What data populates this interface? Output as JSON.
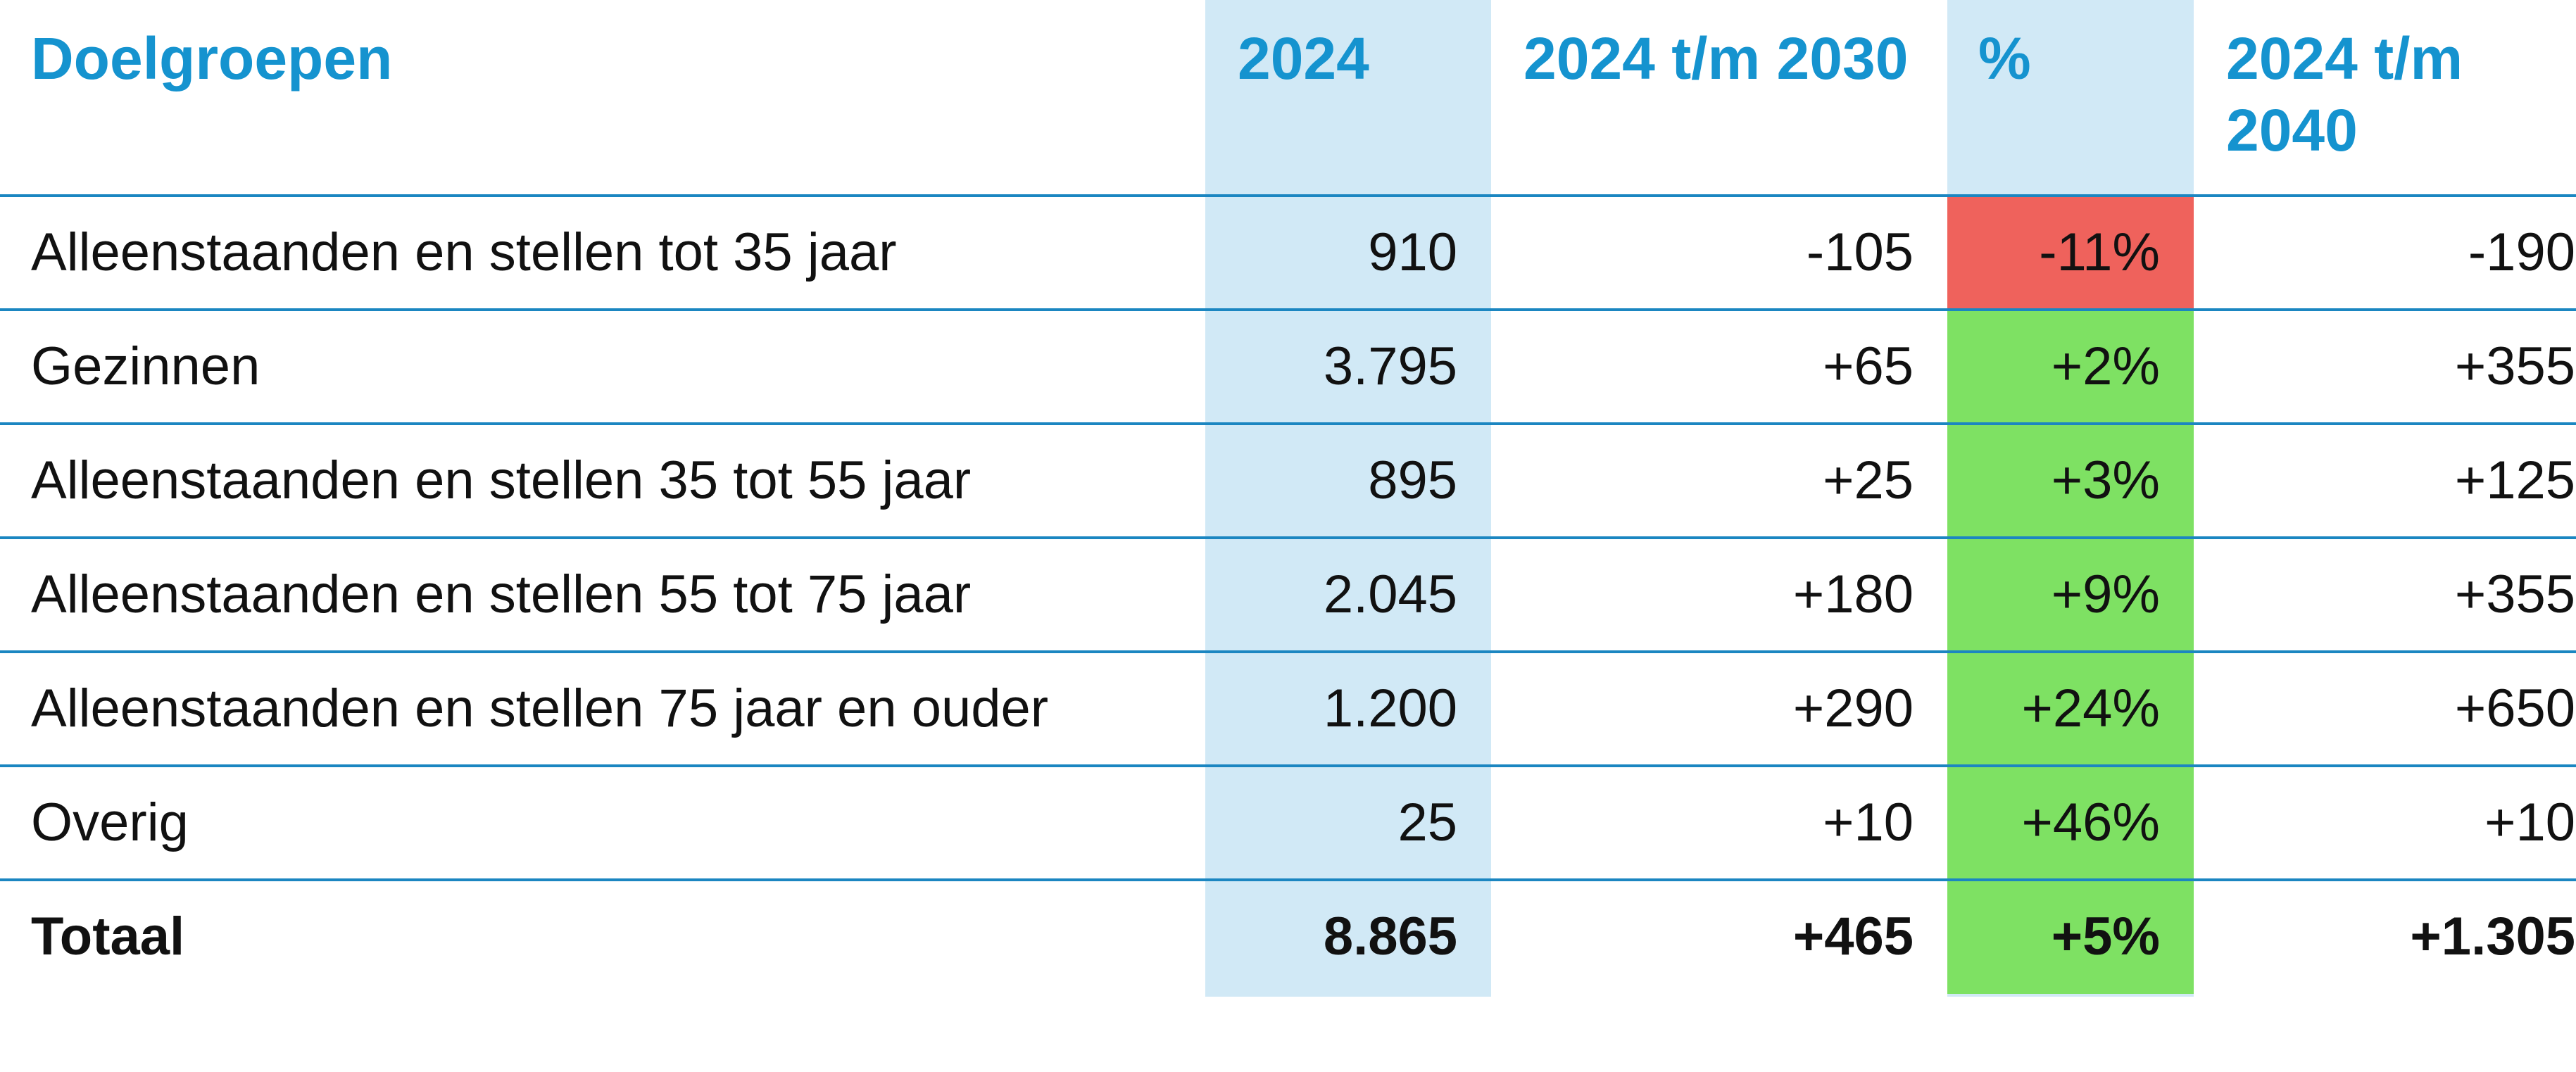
{
  "table": {
    "headers": [
      "Doelgroepen",
      "2024",
      "2024 t/m 2030",
      "%",
      "2024 t/m 2040"
    ],
    "rows": [
      {
        "label": "Alleenstaanden en stellen tot 35 jaar",
        "y2024": "910",
        "to2030": "-105",
        "pct": "-11%",
        "to2040": "-190",
        "pct_status": "negative"
      },
      {
        "label": "Gezinnen",
        "y2024": "3.795",
        "to2030": "+65",
        "pct": "+2%",
        "to2040": "+355",
        "pct_status": "positive"
      },
      {
        "label": "Alleenstaanden en stellen 35 tot 55 jaar",
        "y2024": "895",
        "to2030": "+25",
        "pct": "+3%",
        "to2040": "+125",
        "pct_status": "positive"
      },
      {
        "label": "Alleenstaanden en stellen 55 tot 75 jaar",
        "y2024": "2.045",
        "to2030": "+180",
        "pct": "+9%",
        "to2040": "+355",
        "pct_status": "positive"
      },
      {
        "label": "Alleenstaanden en stellen 75 jaar en ouder",
        "y2024": "1.200",
        "to2030": "+290",
        "pct": "+24%",
        "to2040": "+650",
        "pct_status": "positive"
      },
      {
        "label": "Overig",
        "y2024": "25",
        "to2030": "+10",
        "pct": "+46%",
        "to2040": "+10",
        "pct_status": "positive"
      }
    ],
    "total": {
      "label": "Totaal",
      "y2024": "8.865",
      "to2030": "+465",
      "pct": "+5%",
      "to2040": "+1.305",
      "pct_status": "positive"
    }
  },
  "colors": {
    "header_text": "#1593cf",
    "rule": "#1b86c1",
    "column_shade": "#d1e9f6",
    "negative": "#ef625c",
    "positive": "#7ee163"
  }
}
